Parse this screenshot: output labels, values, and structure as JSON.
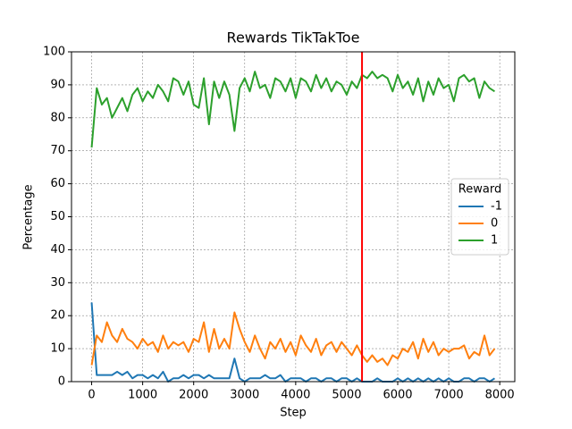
{
  "chart_data": {
    "type": "line",
    "title": "Rewards TikTakToe",
    "x_label": "Step",
    "y_label": "Percentage",
    "x": [
      0,
      100,
      200,
      300,
      400,
      500,
      600,
      700,
      800,
      900,
      1000,
      1100,
      1200,
      1300,
      1400,
      1500,
      1600,
      1700,
      1800,
      1900,
      2000,
      2100,
      2200,
      2300,
      2400,
      2500,
      2600,
      2700,
      2800,
      2900,
      3000,
      3100,
      3200,
      3300,
      3400,
      3500,
      3600,
      3700,
      3800,
      3900,
      4000,
      4100,
      4200,
      4300,
      4400,
      4500,
      4600,
      4700,
      4800,
      4900,
      5000,
      5100,
      5200,
      5300,
      5400,
      5500,
      5600,
      5700,
      5800,
      5900,
      6000,
      6100,
      6200,
      6300,
      6400,
      6500,
      6600,
      6700,
      6800,
      6900,
      7000,
      7100,
      7200,
      7300,
      7400,
      7500,
      7600,
      7700,
      7800,
      7900
    ],
    "series": [
      {
        "name": "-1",
        "color": "#1f77b4",
        "values": [
          24,
          2,
          2,
          2,
          2,
          3,
          2,
          3,
          1,
          2,
          2,
          1,
          2,
          1,
          3,
          0,
          1,
          1,
          2,
          1,
          2,
          2,
          1,
          2,
          1,
          1,
          1,
          1,
          7,
          1,
          0,
          1,
          1,
          1,
          2,
          1,
          1,
          2,
          0,
          1,
          1,
          1,
          0,
          1,
          1,
          0,
          1,
          1,
          0,
          1,
          1,
          0,
          1,
          0,
          0,
          0,
          1,
          0,
          0,
          0,
          1,
          0,
          1,
          0,
          1,
          0,
          1,
          0,
          1,
          0,
          1,
          0,
          0,
          1,
          1,
          0,
          1,
          1,
          0,
          1
        ]
      },
      {
        "name": "0",
        "color": "#ff7f0e",
        "values": [
          5,
          14,
          12,
          18,
          14,
          12,
          16,
          13,
          12,
          10,
          13,
          11,
          12,
          9,
          14,
          10,
          12,
          11,
          12,
          9,
          13,
          12,
          18,
          9,
          16,
          10,
          13,
          10,
          21,
          16,
          12,
          9,
          14,
          10,
          7,
          12,
          10,
          13,
          9,
          12,
          8,
          14,
          11,
          9,
          13,
          8,
          11,
          12,
          9,
          12,
          10,
          8,
          11,
          8,
          6,
          8,
          6,
          7,
          5,
          8,
          7,
          10,
          9,
          12,
          7,
          13,
          9,
          12,
          8,
          10,
          9,
          10,
          10,
          11,
          7,
          9,
          8,
          14,
          8,
          10
        ]
      },
      {
        "name": "1",
        "color": "#2ca02c",
        "values": [
          71,
          89,
          84,
          86,
          80,
          83,
          86,
          82,
          87,
          89,
          85,
          88,
          86,
          90,
          88,
          85,
          92,
          91,
          87,
          91,
          84,
          83,
          92,
          78,
          91,
          86,
          91,
          87,
          76,
          89,
          92,
          88,
          94,
          89,
          90,
          86,
          92,
          91,
          88,
          92,
          86,
          92,
          91,
          88,
          93,
          89,
          92,
          88,
          91,
          90,
          87,
          91,
          89,
          93,
          92,
          94,
          92,
          93,
          92,
          88,
          93,
          89,
          91,
          87,
          92,
          85,
          91,
          87,
          92,
          89,
          90,
          85,
          92,
          93,
          91,
          92,
          86,
          91,
          89,
          88
        ]
      }
    ],
    "vline": {
      "x": 5300,
      "color": "#ff0000"
    },
    "legend_title": "Reward",
    "legend": "center right",
    "grid": true,
    "xlim": [
      -395,
      8295
    ],
    "ylim": [
      0,
      100
    ],
    "xticks": [
      0,
      1000,
      2000,
      3000,
      4000,
      5000,
      6000,
      7000,
      8000
    ],
    "yticks": [
      0,
      10,
      20,
      30,
      40,
      50,
      60,
      70,
      80,
      90,
      100
    ]
  }
}
